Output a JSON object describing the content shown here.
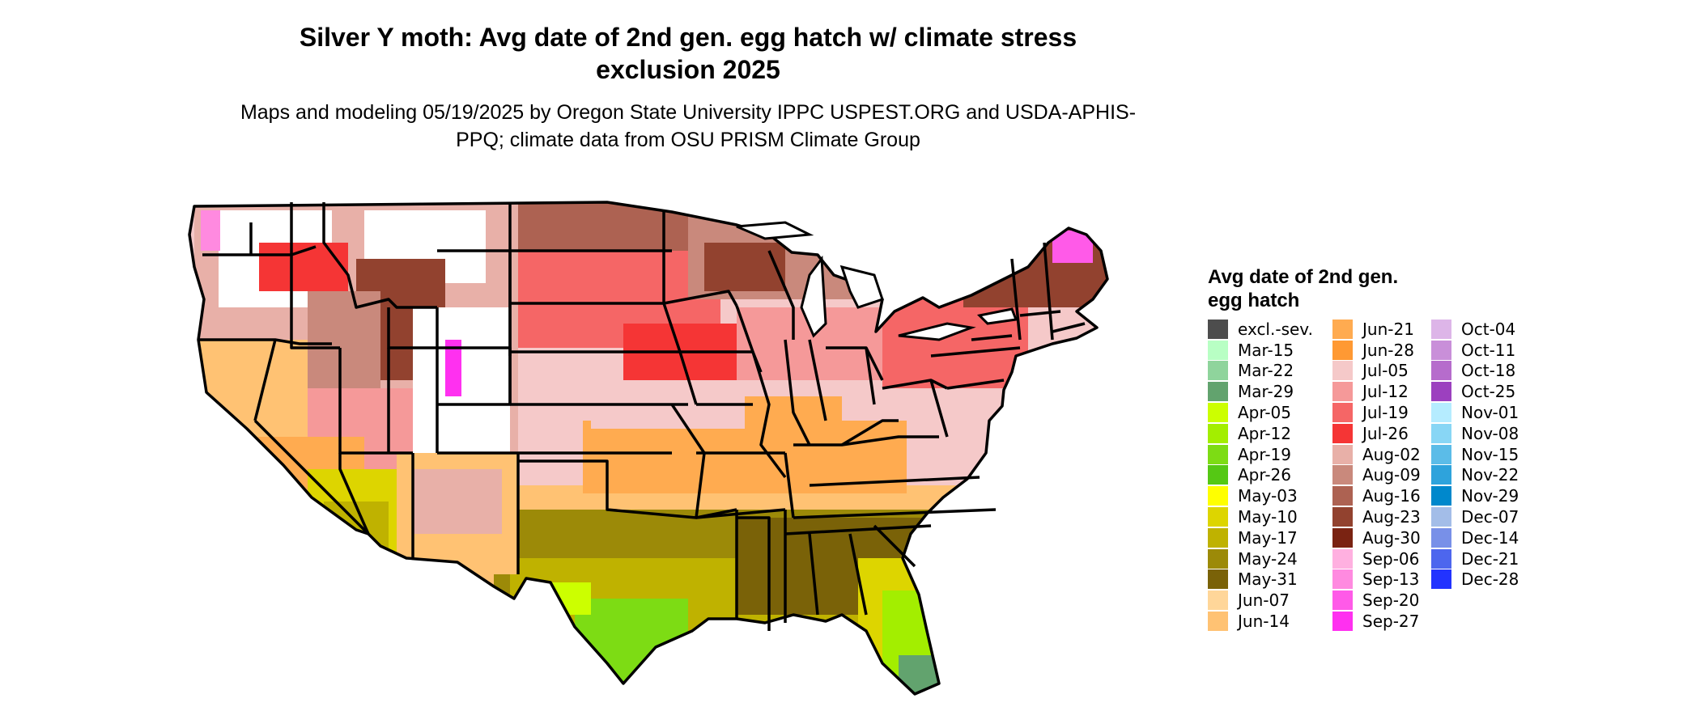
{
  "title": "Silver Y moth: Avg date of 2nd gen. egg hatch w/ climate stress exclusion 2025",
  "subtitle": "Maps and modeling 05/19/2025 by Oregon State University IPPC USPEST.ORG and USDA-APHIS-PPQ; climate data from OSU PRISM Climate Group",
  "map": {
    "region": "Contiguous United States",
    "boundary_color": "#000000"
  },
  "legend": {
    "title": "Avg date of 2nd gen. egg hatch",
    "columns": [
      [
        {
          "label": "excl.-sev.",
          "color": "#4d4d4d"
        },
        {
          "label": "Mar-15",
          "color": "#b8ffc4"
        },
        {
          "label": "Mar-22",
          "color": "#8fd49c"
        },
        {
          "label": "Mar-29",
          "color": "#62a36e"
        },
        {
          "label": "Apr-05",
          "color": "#ccff00"
        },
        {
          "label": "Apr-12",
          "color": "#a3ee00"
        },
        {
          "label": "Apr-19",
          "color": "#7ddc14"
        },
        {
          "label": "Apr-26",
          "color": "#55c814"
        },
        {
          "label": "May-03",
          "color": "#ffff00"
        },
        {
          "label": "May-10",
          "color": "#ddd500"
        },
        {
          "label": "May-17",
          "color": "#bfb200"
        },
        {
          "label": "May-24",
          "color": "#9c8a08"
        },
        {
          "label": "May-31",
          "color": "#7a6208"
        },
        {
          "label": "Jun-07",
          "color": "#ffd699"
        },
        {
          "label": "Jun-14",
          "color": "#ffc273"
        }
      ],
      [
        {
          "label": "Jun-21",
          "color": "#ffab50"
        },
        {
          "label": "Jun-28",
          "color": "#ff9933"
        },
        {
          "label": "Jul-05",
          "color": "#f5c9c9"
        },
        {
          "label": "Jul-12",
          "color": "#f59999"
        },
        {
          "label": "Jul-19",
          "color": "#f56666"
        },
        {
          "label": "Jul-26",
          "color": "#f53535"
        },
        {
          "label": "Aug-02",
          "color": "#e8b0a8"
        },
        {
          "label": "Aug-09",
          "color": "#c9897c"
        },
        {
          "label": "Aug-16",
          "color": "#ad6252"
        },
        {
          "label": "Aug-23",
          "color": "#92422f"
        },
        {
          "label": "Aug-30",
          "color": "#7a2312"
        },
        {
          "label": "Sep-06",
          "color": "#ffb0e0"
        },
        {
          "label": "Sep-13",
          "color": "#ff8ae0"
        },
        {
          "label": "Sep-20",
          "color": "#ff5ae8"
        },
        {
          "label": "Sep-27",
          "color": "#ff30f0"
        }
      ],
      [
        {
          "label": "Oct-04",
          "color": "#ddb5e8"
        },
        {
          "label": "Oct-11",
          "color": "#c98fd9"
        },
        {
          "label": "Oct-18",
          "color": "#b66ccc"
        },
        {
          "label": "Oct-25",
          "color": "#9c40bf"
        },
        {
          "label": "Nov-01",
          "color": "#b5ecff"
        },
        {
          "label": "Nov-08",
          "color": "#88d6f5"
        },
        {
          "label": "Nov-15",
          "color": "#5bbce8"
        },
        {
          "label": "Nov-22",
          "color": "#2ea3dc"
        },
        {
          "label": "Nov-29",
          "color": "#0088cc"
        },
        {
          "label": "Dec-07",
          "color": "#a3bde8"
        },
        {
          "label": "Dec-14",
          "color": "#7890e8"
        },
        {
          "label": "Dec-21",
          "color": "#4d66ee"
        },
        {
          "label": "Dec-28",
          "color": "#2233ff"
        }
      ]
    ]
  }
}
